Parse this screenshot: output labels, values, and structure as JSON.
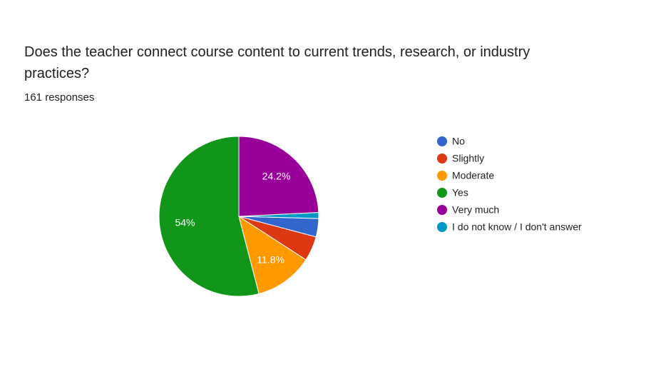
{
  "chart_data": {
    "type": "pie",
    "title": "Does the teacher connect course content to current trends, research, or industry practices?",
    "subtitle": "161 responses",
    "categories": [
      "Yes",
      "Moderate",
      "Slightly",
      "No",
      "I do not know / I don't answer",
      "Very much"
    ],
    "values": [
      54,
      11.8,
      5,
      3.7,
      1.2,
      24.2
    ],
    "value_labels": [
      "54%",
      "11.8%",
      null,
      null,
      null,
      "24.2%"
    ],
    "colors": [
      "#109618",
      "#ff9900",
      "#dc3912",
      "#3366cc",
      "#0099c6",
      "#990099"
    ],
    "legend_order": [
      3,
      2,
      1,
      0,
      5,
      4
    ],
    "legend": "right"
  }
}
